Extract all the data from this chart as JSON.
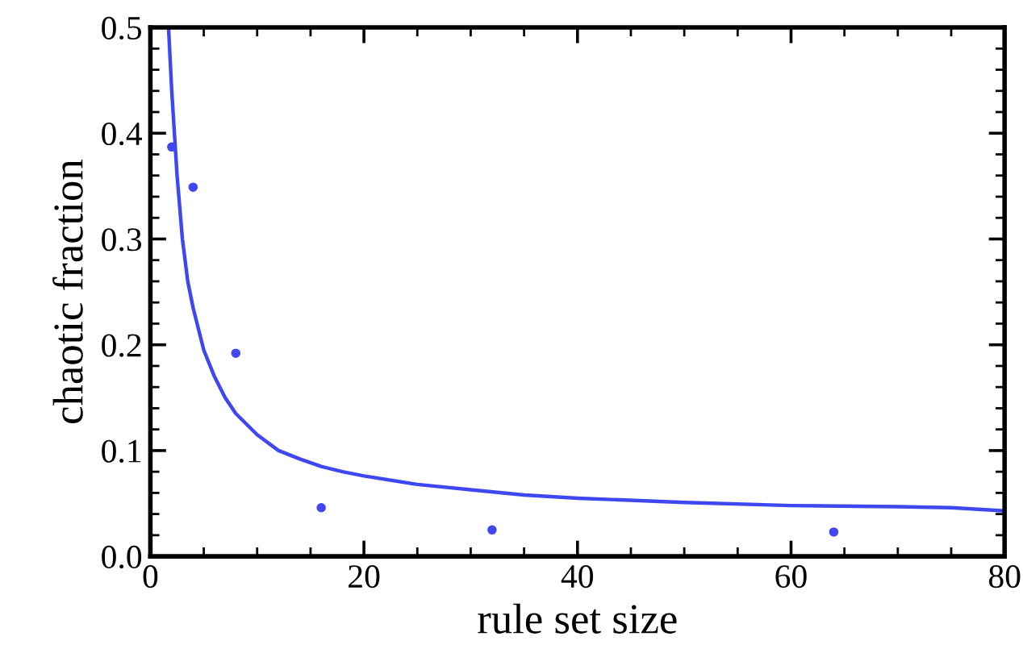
{
  "chart_data": {
    "type": "line",
    "xlabel": "rule set size",
    "ylabel": "chaotic fraction",
    "xlim": [
      0,
      80
    ],
    "ylim": [
      0,
      0.5
    ],
    "xticks": [
      0,
      20,
      40,
      60,
      80
    ],
    "yticks": [
      {
        "value": 0,
        "label": "0.0"
      },
      0.1,
      0.2,
      0.3,
      0.4,
      0.5
    ],
    "grid": false,
    "legend": false,
    "series": [
      {
        "color": "#3f48f0",
        "marker": "none",
        "line_style": "solid",
        "x": [
          1.7,
          2,
          2.5,
          3,
          3.5,
          4,
          5,
          6,
          7,
          8,
          10,
          12,
          14,
          16,
          18,
          20,
          25,
          30,
          35,
          40,
          50,
          60,
          70,
          75,
          80
        ],
        "values": [
          0.5,
          0.44,
          0.36,
          0.3,
          0.26,
          0.235,
          0.195,
          0.17,
          0.15,
          0.135,
          0.115,
          0.1,
          0.092,
          0.085,
          0.08,
          0.076,
          0.068,
          0.063,
          0.058,
          0.055,
          0.051,
          0.048,
          0.047,
          0.046,
          0.043
        ]
      },
      {
        "type": "scatter",
        "color": "#3f48f0",
        "marker": "circle",
        "x": [
          2,
          4,
          8,
          16,
          32,
          64
        ],
        "values": [
          0.387,
          0.349,
          0.192,
          0.046,
          0.025,
          0.023
        ]
      }
    ]
  }
}
